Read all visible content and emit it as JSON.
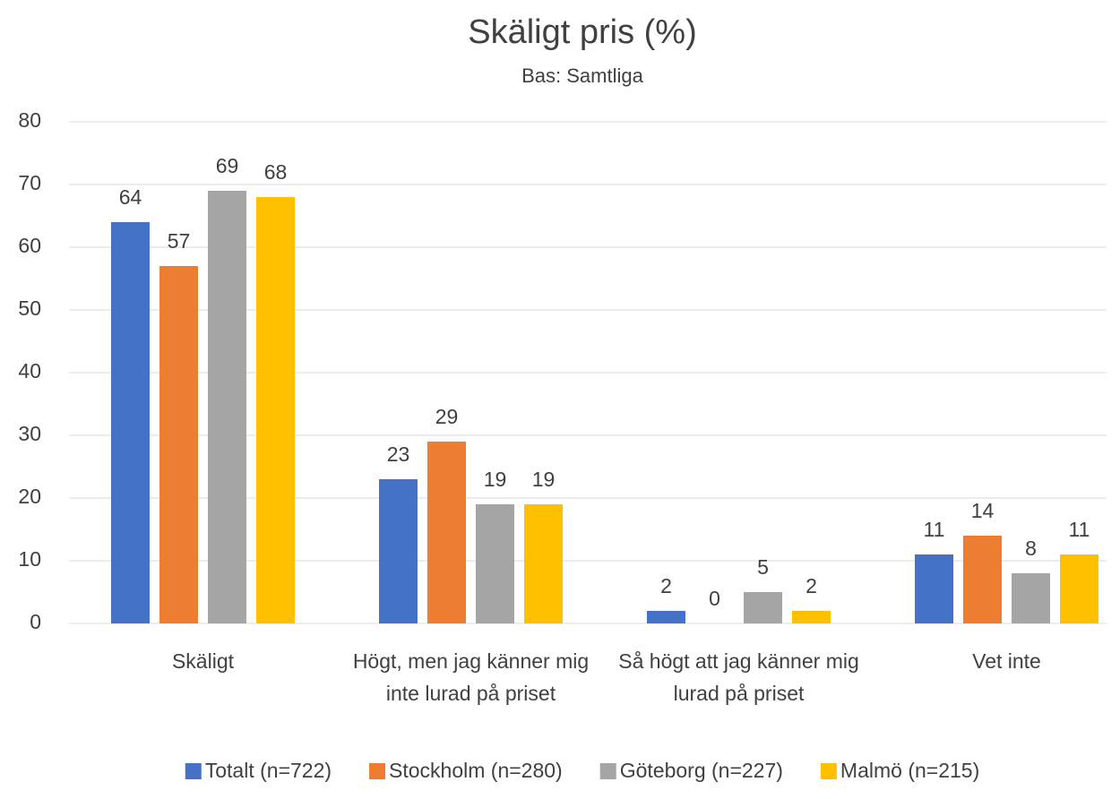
{
  "chart_data": {
    "type": "bar",
    "title": "Skäligt pris (%)",
    "subtitle": "Bas: Samtliga",
    "categories": [
      "Skäligt",
      "Högt, men jag känner mig inte lurad på priset",
      "Så högt att jag känner mig lurad på priset",
      "Vet inte"
    ],
    "series": [
      {
        "name": "Totalt (n=722)",
        "color": "#4472c4",
        "values": [
          64,
          23,
          2,
          11
        ]
      },
      {
        "name": "Stockholm (n=280)",
        "color": "#ed7d31",
        "values": [
          57,
          29,
          0,
          14
        ]
      },
      {
        "name": "Göteborg (n=227)",
        "color": "#a5a5a5",
        "values": [
          69,
          19,
          5,
          8
        ]
      },
      {
        "name": "Malmö (n=215)",
        "color": "#ffc000",
        "values": [
          68,
          19,
          2,
          11
        ]
      }
    ],
    "ylim": [
      0,
      80
    ],
    "yticks": [
      0,
      10,
      20,
      30,
      40,
      50,
      60,
      70,
      80
    ],
    "grid": true,
    "legend": "bottom"
  }
}
